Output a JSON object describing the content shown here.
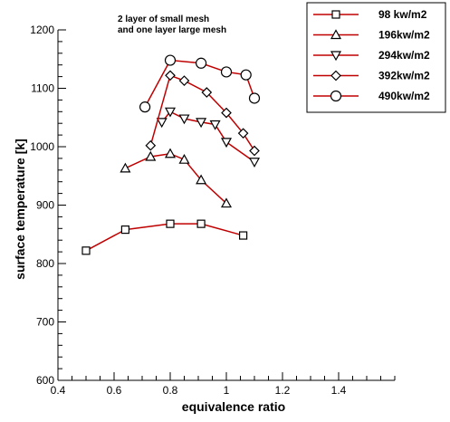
{
  "chart_data": {
    "type": "line",
    "title": "",
    "xlabel": "equivalence ratio",
    "ylabel": "surface temperature [k]",
    "xlim": [
      0.4,
      1.6
    ],
    "ylim": [
      600,
      1200
    ],
    "xticks": [
      "0.4",
      "0.6",
      "0.8",
      "1",
      "1.2",
      "1.4"
    ],
    "yticks": [
      "600",
      "700",
      "800",
      "900",
      "1000",
      "1100",
      "1200"
    ],
    "xtick_values": [
      0.4,
      0.6,
      0.8,
      1.0,
      1.2,
      1.4
    ],
    "ytick_values": [
      600,
      700,
      800,
      900,
      1000,
      1100,
      1200
    ],
    "annotation": [
      "2 layer of small mesh",
      "and one layer large mesh"
    ],
    "legend_position": "top-right",
    "line_color": "#c00000",
    "series": [
      {
        "name": "98  kw/m2",
        "marker": "square",
        "x": [
          0.5,
          0.64,
          0.8,
          0.91,
          1.06
        ],
        "y": [
          822,
          858,
          868,
          868,
          848
        ]
      },
      {
        "name": "196kw/m2",
        "marker": "triangle-up",
        "x": [
          0.64,
          0.73,
          0.8,
          0.85,
          0.91,
          1.0
        ],
        "y": [
          963,
          983,
          988,
          978,
          943,
          903
        ]
      },
      {
        "name": "294kw/m2",
        "marker": "triangle-down",
        "x": [
          0.77,
          0.8,
          0.85,
          0.91,
          0.96,
          1.0,
          1.1
        ],
        "y": [
          1042,
          1060,
          1048,
          1042,
          1038,
          1008,
          974
        ]
      },
      {
        "name": "392kw/m2",
        "marker": "diamond",
        "x": [
          0.73,
          0.8,
          0.85,
          0.93,
          1.0,
          1.06,
          1.1
        ],
        "y": [
          1002,
          1122,
          1113,
          1093,
          1058,
          1023,
          993
        ]
      },
      {
        "name": "490kw/m2",
        "marker": "circle",
        "x": [
          0.71,
          0.8,
          0.91,
          1.0,
          1.07,
          1.1
        ],
        "y": [
          1068,
          1148,
          1143,
          1128,
          1123,
          1083
        ]
      }
    ]
  }
}
